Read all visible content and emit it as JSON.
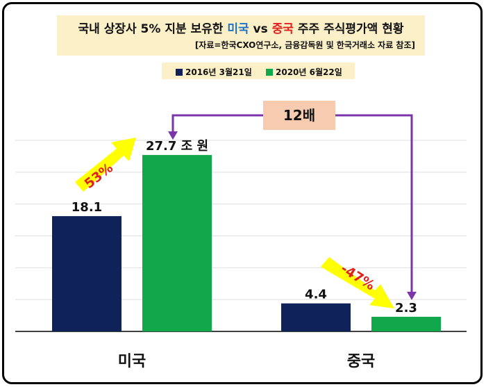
{
  "title": {
    "part1": "국내 상장사 5% 지분 보유한 ",
    "us": "미국",
    "vs": " vs ",
    "cn": "중국",
    "part2": " 주주 주식평가액 현황"
  },
  "source": "[자료=한국CXO연구소, 금융감독원 및 한국거래소 자료 참조]",
  "annotations": {
    "ratio": "12배",
    "us_change": "53%",
    "cn_change": "-47%"
  },
  "colors": {
    "series_2016": "#0f2259",
    "series_2020": "#10a84a",
    "arrow_yellow": "#ffff00",
    "connector": "#7a35a8"
  },
  "chart_data": {
    "type": "bar",
    "categories": [
      "미국",
      "중국"
    ],
    "series": [
      {
        "name": "2016년 3월21일",
        "values": [
          18.1,
          4.4
        ],
        "labels": [
          "18.1",
          "4.4"
        ]
      },
      {
        "name": "2020년 6월22일",
        "values": [
          27.7,
          2.3
        ],
        "labels": [
          "27.7 조 원",
          "2.3"
        ]
      }
    ],
    "ylim": [
      0,
      30
    ],
    "grid": true,
    "legend": "top-center"
  }
}
